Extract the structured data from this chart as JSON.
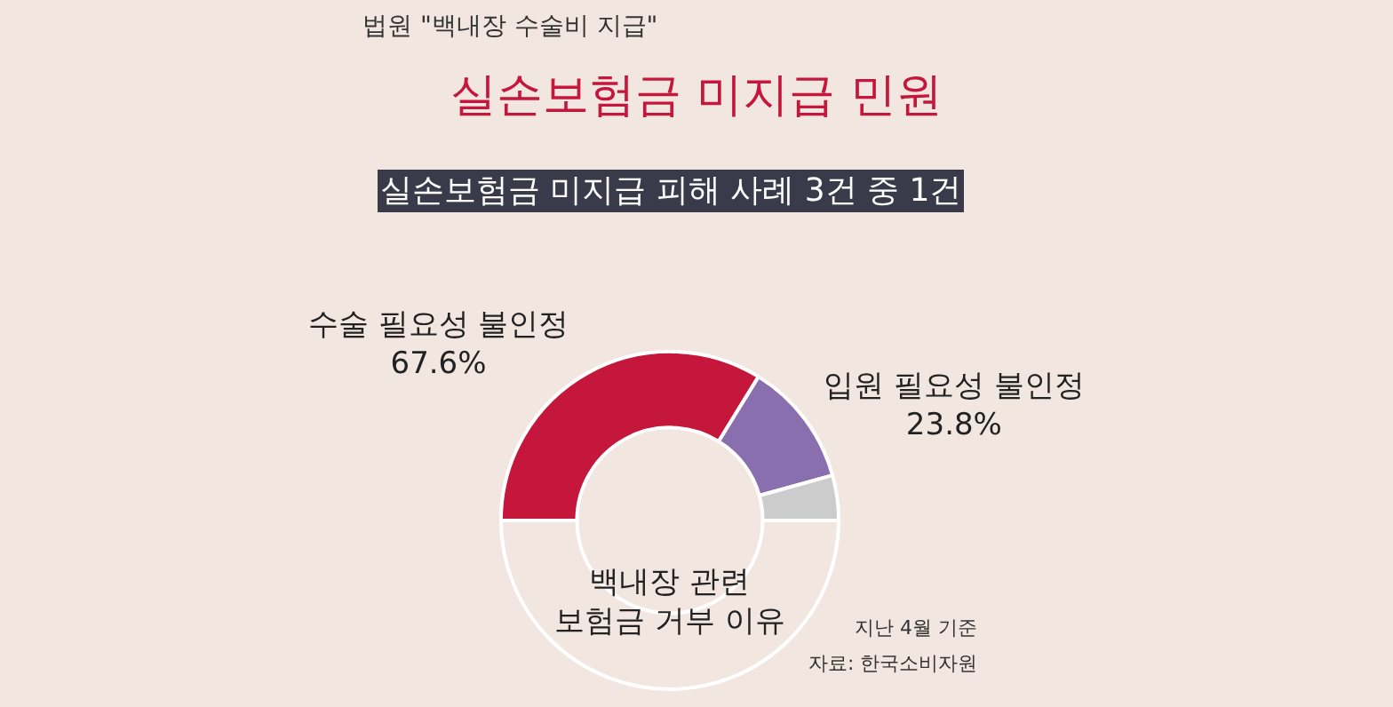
{
  "chart_data": {
    "type": "donut",
    "title": "실손보험금 미지급 민원",
    "subtitle": "실손보험금 미지급 피해 사례 3건 중 1건",
    "categories": [
      "수술 필요성 불인정",
      "입원 필요성 불인정",
      null
    ],
    "values": [
      67.6,
      23.8,
      8.6
    ],
    "colors": [
      "#c4173b",
      "#8a6fae",
      "#cccccc"
    ],
    "value_labels": [
      "67.6%",
      "23.8%",
      null
    ],
    "annotations": [
      "법원 \"백내장 수술비 지급\"",
      "백내장 관련\n보험금 거부 이유",
      "지난 4월 기준",
      "자료: 한국소비자원"
    ],
    "legend": false
  }
}
